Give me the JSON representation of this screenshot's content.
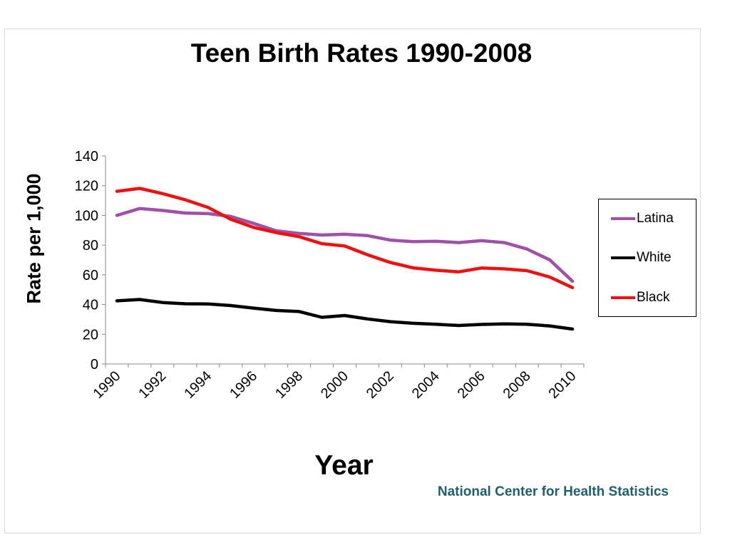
{
  "chart_data": {
    "type": "line",
    "title": "Teen Birth Rates 1990-2008",
    "xlabel": "Year",
    "ylabel": "Rate per 1,000",
    "source": "National Center for Health Statistics",
    "x": [
      1990,
      1991,
      1992,
      1993,
      1994,
      1995,
      1996,
      1997,
      1998,
      1999,
      2000,
      2001,
      2002,
      2003,
      2004,
      2005,
      2006,
      2007,
      2008,
      2009,
      2010
    ],
    "x_ticks": [
      "1990",
      "1992",
      "1994",
      "1996",
      "1998",
      "2000",
      "2002",
      "2004",
      "2006",
      "2008",
      "2010"
    ],
    "xlim": [
      1989.5,
      2010.5
    ],
    "ylim": [
      0,
      140
    ],
    "y_ticks": [
      "0",
      "20",
      "40",
      "60",
      "80",
      "100",
      "120",
      "140"
    ],
    "grid": false,
    "legend_position": "right",
    "series": [
      {
        "name": "Latina",
        "color": "#a050a8",
        "values": [
          100,
          104.6,
          103.3,
          101.6,
          101.2,
          99.3,
          94.6,
          89.6,
          87.9,
          86.8,
          87.3,
          86.4,
          83.4,
          82.3,
          82.6,
          81.7,
          83.0,
          81.7,
          77.4,
          70.1,
          55.7
        ]
      },
      {
        "name": "White",
        "color": "#000000",
        "values": [
          42.5,
          43.4,
          41.4,
          40.5,
          40.4,
          39.3,
          37.6,
          36.0,
          35.3,
          31.4,
          32.6,
          30.3,
          28.5,
          27.4,
          26.7,
          25.9,
          26.6,
          27.0,
          26.7,
          25.6,
          23.5
        ]
      },
      {
        "name": "Black",
        "color": "#ee1111",
        "values": [
          116.2,
          118.2,
          114.7,
          110.5,
          105.4,
          97.4,
          91.9,
          88.4,
          85.7,
          81.0,
          79.4,
          73.5,
          68.3,
          64.7,
          63.1,
          62.0,
          64.6,
          64.0,
          62.8,
          58.5,
          51.4
        ]
      }
    ]
  }
}
